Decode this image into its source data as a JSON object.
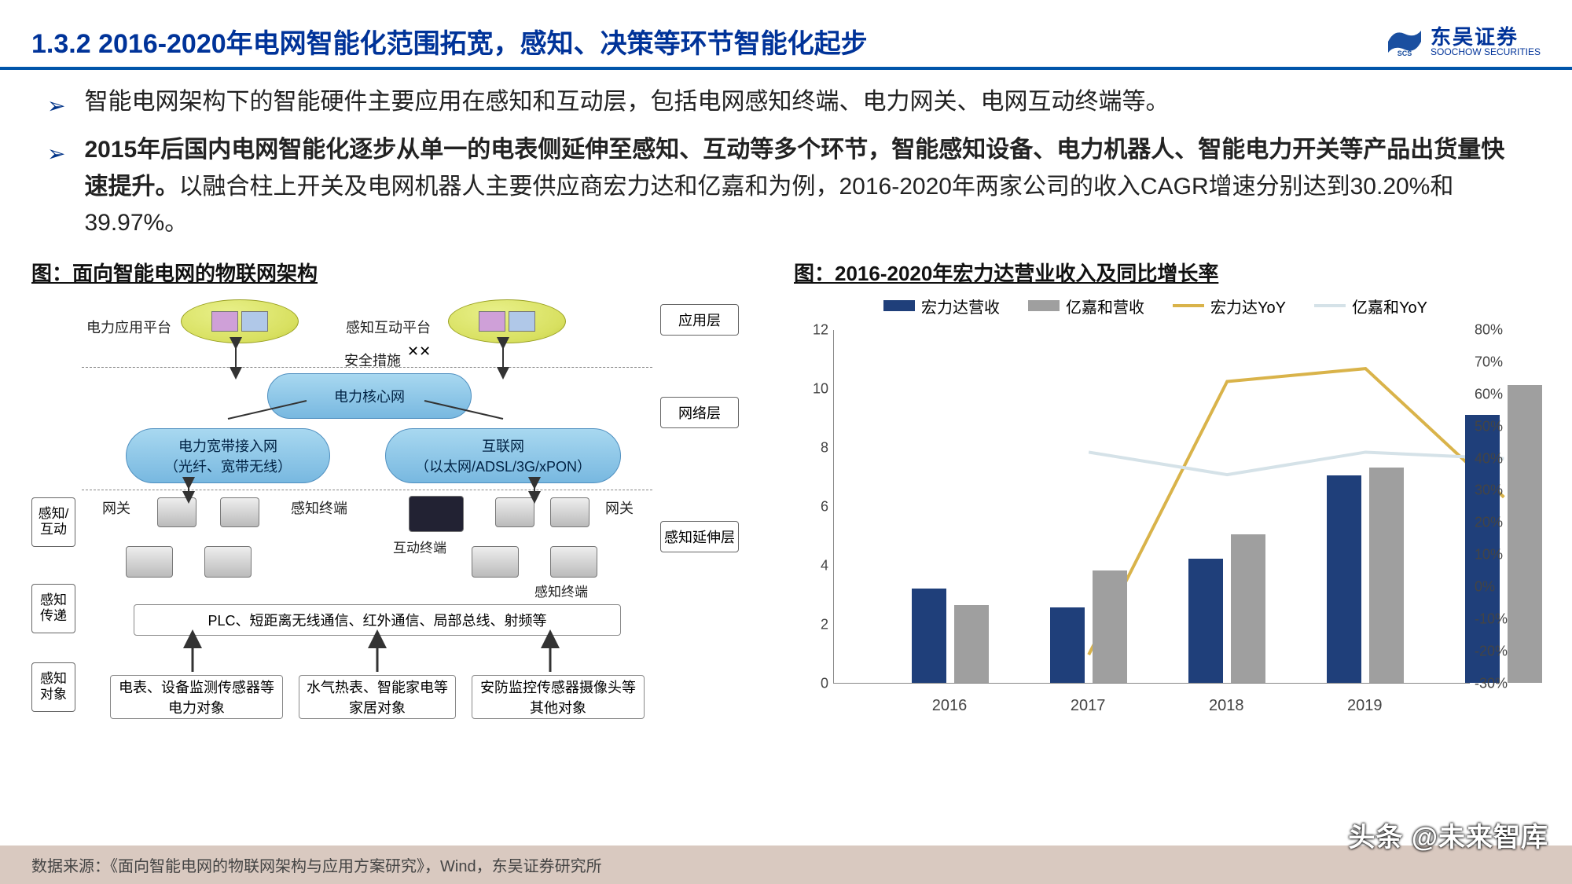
{
  "header": {
    "title": "1.3.2  2016-2020年电网智能化范围拓宽，感知、决策等环节智能化起步",
    "logo_cn": "东吴证券",
    "logo_en": "SOOCHOW SECURITIES",
    "logo_tag": "SCS"
  },
  "bullets": {
    "b1": "智能电网架构下的智能硬件主要应用在感知和互动层，包括电网感知终端、电力网关、电网互动终端等。",
    "b2_bold": "2015年后国内电网智能化逐步从单一的电表侧延伸至感知、互动等多个环节，智能感知设备、电力机器人、智能电力开关等产品出货量快速提升。",
    "b2_rest": "以融合柱上开关及电网机器人主要供应商宏力达和亿嘉和为例，2016-2020年两家公司的收入CAGR增速分别达到30.20%和39.97%。"
  },
  "fig1": {
    "title": "图：面向智能电网的物联网架构",
    "platform_left": "电力应用平台",
    "platform_right": "感知互动平台",
    "security": "安全措施",
    "core": "电力核心网",
    "access_left_l1": "电力宽带接入网",
    "access_left_l2": "（光纤、宽带无线）",
    "access_right_l1": "互联网",
    "access_right_l2": "（以太网/ADSL/3G/xPON）",
    "gateway": "网关",
    "sense_term": "感知终端",
    "interact_term": "互动终端",
    "plc": "PLC、短距离无线通信、红外通信、局部总线、射频等",
    "obj1": "电表、设备监测传感器等电力对象",
    "obj2": "水气热表、智能家电等家居对象",
    "obj3": "安防监控传感器摄像头等其他对象",
    "layer_app": "应用层",
    "layer_net": "网络层",
    "layer_sense": "感知延伸层",
    "side_interact": "感知/互动",
    "side_transfer": "感知传递",
    "side_object": "感知对象"
  },
  "fig2": {
    "title": "图：2016-2020年宏力达营业收入及同比增长率",
    "legend": {
      "l1": "宏力达营收",
      "l2": "亿嘉和营收",
      "l3": "宏力达YoY",
      "l4": "亿嘉和YoY"
    },
    "colors": {
      "bar1": "#1f3f7a",
      "bar2": "#9f9f9f",
      "line1": "#d9b34a",
      "line2": "#d5e2e8"
    },
    "years": [
      "2016",
      "2017",
      "2018",
      "2019"
    ],
    "bar1_vals": [
      3.2,
      2.55,
      4.2,
      7.05
    ],
    "bar2_vals": [
      2.65,
      3.8,
      5.05,
      7.3
    ],
    "line1_vals_pct": [
      null,
      -21,
      64,
      68
    ],
    "line1_tail_pct": 28,
    "line2_vals_pct": [
      null,
      42,
      35,
      42
    ],
    "line2_tail_pct": 40,
    "tail_bar1": 9.1,
    "tail_bar2": 10.1,
    "ylim_left": [
      0,
      12
    ],
    "ytick_left_step": 2,
    "ylim_right": [
      -30,
      80
    ],
    "ytick_right_step": 10,
    "background": "#ffffff"
  },
  "footer": "数据来源：《面向智能电网的物联网架构与应用方案研究》，Wind，东吴证券研究所",
  "watermark": "头条 @未来智库"
}
